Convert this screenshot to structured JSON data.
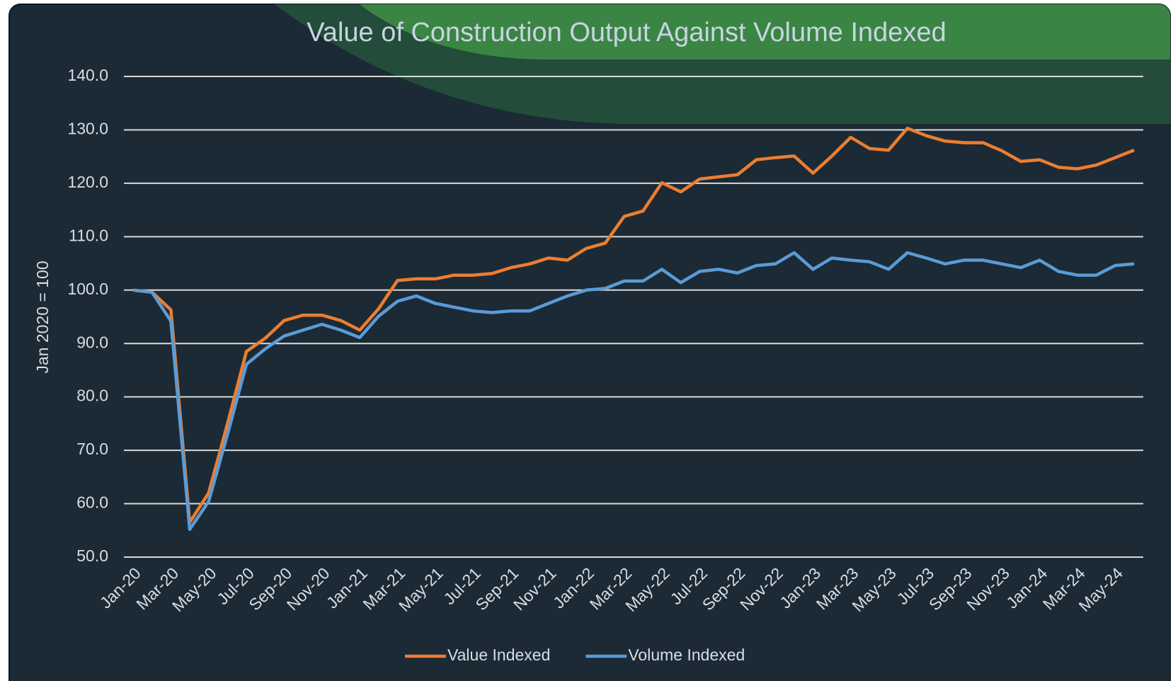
{
  "chart_data": {
    "type": "line",
    "title": "Value of Construction Output Against Volume Indexed",
    "y_label": "Jan 2020 = 100",
    "categories": [
      "Jan-20",
      null,
      "Mar-20",
      null,
      "May-20",
      null,
      "Jul-20",
      null,
      "Sep-20",
      null,
      "Nov-20",
      null,
      "Jan-21",
      null,
      "Mar-21",
      null,
      "May-21",
      null,
      "Jul-21",
      null,
      "Sep-21",
      null,
      "Nov-21",
      null,
      "Jan-22",
      null,
      "Mar-22",
      null,
      "May-22",
      null,
      "Jul-22",
      null,
      "Sep-22",
      null,
      "Nov-22",
      null,
      "Jan-23",
      null,
      "Mar-23",
      null,
      "May-23",
      null,
      "Jul-23",
      null,
      "Sep-23",
      null,
      "Nov-23",
      null,
      "Jan-24",
      null,
      "Mar-24",
      null,
      "May-24",
      null
    ],
    "series": [
      {
        "name": "Value Indexed",
        "color": "#ed7d31",
        "values": [
          100,
          99.6,
          96.3,
          56.5,
          62,
          75,
          88.5,
          91,
          94.3,
          95.3,
          95.3,
          94.3,
          92.5,
          96.5,
          101.8,
          102.1,
          102.1,
          102.8,
          102.8,
          103.1,
          104.2,
          104.9,
          106,
          105.6,
          107.8,
          108.8,
          113.8,
          114.8,
          120.1,
          118.4,
          120.8,
          121.2,
          121.6,
          124.4,
          124.8,
          125.1,
          121.9,
          125.1,
          128.6,
          126.5,
          126.2,
          130.3,
          128.9,
          127.9,
          127.6,
          127.6,
          126.1,
          124.1,
          124.4,
          123,
          122.7,
          123.4,
          124.8,
          126.2
        ]
      },
      {
        "name": "Volume Indexed",
        "color": "#5b9bd5",
        "values": [
          100,
          99.6,
          94.2,
          55.2,
          60.4,
          73,
          86.1,
          89,
          91.4,
          92.5,
          93.6,
          92.5,
          91.1,
          95.1,
          97.9,
          98.9,
          97.5,
          96.8,
          96.1,
          95.8,
          96.1,
          96.1,
          97.5,
          98.9,
          100,
          100.3,
          101.7,
          101.7,
          103.9,
          101.4,
          103.5,
          103.9,
          103.2,
          104.6,
          104.9,
          107,
          103.9,
          106,
          105.6,
          105.3,
          103.9,
          107,
          106,
          104.9,
          105.6,
          105.6,
          104.9,
          104.2,
          105.6,
          103.5,
          102.8,
          102.8,
          104.6,
          104.9
        ]
      }
    ],
    "ylim": [
      50,
      140
    ],
    "yticks": [
      {
        "value": 50,
        "label": "50.0"
      },
      {
        "value": 60,
        "label": "60.0"
      },
      {
        "value": 70,
        "label": "70.0"
      },
      {
        "value": 80,
        "label": "80.0"
      },
      {
        "value": 90,
        "label": "90.0"
      },
      {
        "value": 100,
        "label": "100.0"
      },
      {
        "value": 110,
        "label": "110.0"
      },
      {
        "value": 120,
        "label": "120.0"
      },
      {
        "value": 130,
        "label": "130.0"
      },
      {
        "value": 140,
        "label": "140.0"
      }
    ],
    "grid": true,
    "legend": "bottom"
  }
}
